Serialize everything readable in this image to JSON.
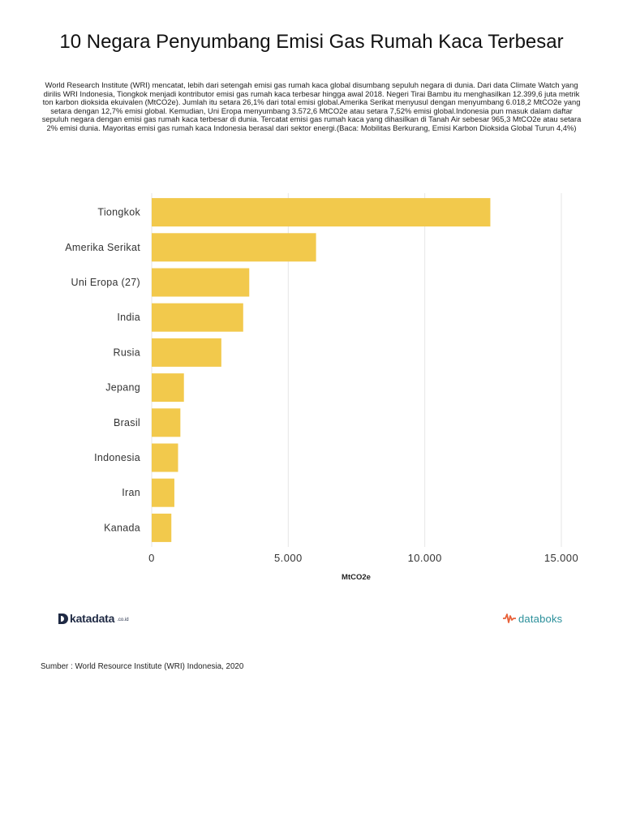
{
  "header": {
    "title": "10 Negara Penyumbang Emisi Gas Rumah Kaca Terbesar",
    "description": "World Research Institute (WRI) mencatat, lebih dari setengah emisi gas rumah kaca global disumbang sepuluh negara di dunia. Dari data Climate Watch yang dirilis WRI Indonesia, Tiongkok menjadi kontributor emisi gas rumah kaca terbesar hingga awal 2018. Negeri Tirai Bambu itu menghasilkan 12.399,6 juta metrik ton karbon dioksida ekuivalen (MtCO2e). Jumlah itu setara 26,1% dari total emisi global.Amerika Serikat menyusul dengan menyumbang 6.018,2 MtCO2e yang setara dengan 12,7% emisi global. Kemudian, Uni Eropa menyumbang 3.572,6 MtCO2e atau setara 7,52% emisi global.Indonesia pun masuk dalam daftar sepuluh negara dengan emisi gas rumah kaca terbesar di dunia. Tercatat emisi gas rumah kaca yang dihasilkan di Tanah Air sebesar 965,3 MtCO2e atau setara 2% emisi dunia. Mayoritas emisi gas rumah kaca Indonesia berasal dari sektor energi.(Baca: Mobilitas Berkurang, Emisi Karbon Dioksida Global Turun 4,4%)"
  },
  "chart_data": {
    "type": "bar",
    "orientation": "horizontal",
    "title": "10 Negara Penyumbang Emisi Gas Rumah Kaca Terbesar",
    "categories": [
      "Tiongkok",
      "Amerika Serikat",
      "Uni Eropa (27)",
      "India",
      "Rusia",
      "Jepang",
      "Brasil",
      "Indonesia",
      "Iran",
      "Kanada"
    ],
    "values": [
      12399.6,
      6018.2,
      3572.6,
      3350,
      2550,
      1180,
      1050,
      965.3,
      830,
      720
    ],
    "xlabel": "MtCO2e",
    "ylabel": "",
    "xlim": [
      0,
      15000
    ],
    "xticks": [
      0,
      5000,
      10000,
      15000
    ],
    "xtick_labels": [
      "0",
      "5.000",
      "10.000",
      "15.000"
    ],
    "bar_color": "#f2c94c",
    "grid": true,
    "legend": "none"
  },
  "branding": {
    "left_logo_text": "katadata",
    "left_logo_suffix": ".co.id",
    "left_logo_color": "#1f2a44",
    "right_logo_text": "databoks",
    "right_logo_color": "#2a8f9a",
    "right_logo_accent": "#e8623a"
  },
  "footer": {
    "source": "Sumber : World Resource Institute (WRI) Indonesia, 2020"
  }
}
